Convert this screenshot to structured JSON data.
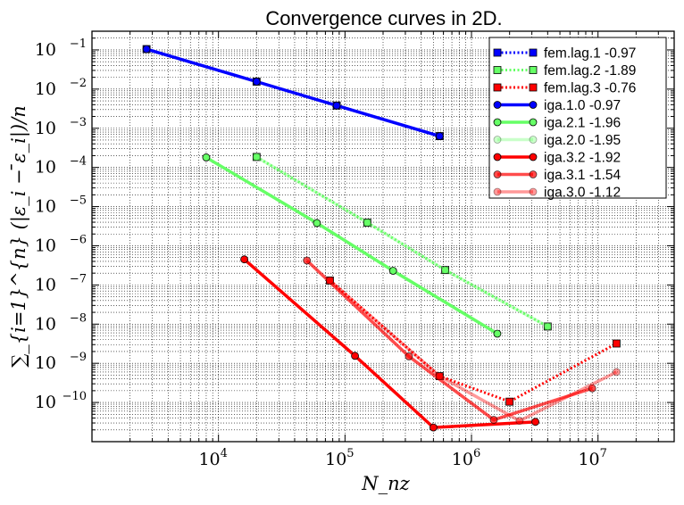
{
  "chart_data": {
    "type": "line",
    "title": "Convergence curves in 2D.",
    "xlabel": "N_nz",
    "ylabel": "∑_{i=1}^{n} (|ε_i − ̄ε_i|)/n",
    "xscale": "log",
    "yscale": "log",
    "xlim": [
      1000,
      40000000
    ],
    "ylim": [
      1e-11,
      0.3
    ],
    "grid": true,
    "legend_position": "top-right",
    "x_tick_labels": [
      {
        "value": 10000,
        "base": "10",
        "exp": "4"
      },
      {
        "value": 100000,
        "base": "10",
        "exp": "5"
      },
      {
        "value": 1000000,
        "base": "10",
        "exp": "6"
      },
      {
        "value": 10000000,
        "base": "10",
        "exp": "7"
      }
    ],
    "y_tick_labels": [
      {
        "value": 0.1,
        "base": "10",
        "exp": "−1"
      },
      {
        "value": 0.01,
        "base": "10",
        "exp": "−2"
      },
      {
        "value": 0.001,
        "base": "10",
        "exp": "−3"
      },
      {
        "value": 0.0001,
        "base": "10",
        "exp": "−4"
      },
      {
        "value": 1e-05,
        "base": "10",
        "exp": "−5"
      },
      {
        "value": 1e-06,
        "base": "10",
        "exp": "−6"
      },
      {
        "value": 1e-07,
        "base": "10",
        "exp": "−7"
      },
      {
        "value": 1e-08,
        "base": "10",
        "exp": "−8"
      },
      {
        "value": 1e-09,
        "base": "10",
        "exp": "−9"
      },
      {
        "value": 1e-10,
        "base": "10",
        "exp": "−10"
      }
    ],
    "series": [
      {
        "name": "fem.lag.1 -0.97",
        "color": "#0000ff",
        "opacity": 1.0,
        "dash": "dotted",
        "marker": "square",
        "x": [
          2700,
          20000,
          86000,
          560000
        ],
        "y": [
          0.105,
          0.0155,
          0.0038,
          0.00063
        ]
      },
      {
        "name": "fem.lag.2 -1.89",
        "color": "#66ff66",
        "opacity": 1.0,
        "dash": "dotted",
        "marker": "square",
        "x": [
          20000,
          150000,
          620000,
          4000000
        ],
        "y": [
          0.000185,
          3.9e-06,
          2.4e-07,
          8.7e-09
        ]
      },
      {
        "name": "fem.lag.3 -0.76",
        "color": "#ff0000",
        "opacity": 1.0,
        "dash": "dotted",
        "marker": "square",
        "x": [
          76000,
          560000,
          2000000,
          14000000
        ],
        "y": [
          1.3e-07,
          4.7e-10,
          1.05e-10,
          3.2e-09
        ]
      },
      {
        "name": "iga.1.0 -0.97",
        "color": "#0000ff",
        "opacity": 1.0,
        "dash": "solid",
        "marker": "circle",
        "x": [
          2700,
          20000,
          86000,
          560000
        ],
        "y": [
          0.105,
          0.0155,
          0.0038,
          0.00063
        ]
      },
      {
        "name": "iga.2.1 -1.96",
        "color": "#66ff66",
        "opacity": 1.0,
        "dash": "solid",
        "marker": "circle",
        "x": [
          8000,
          60000,
          240000,
          1600000
        ],
        "y": [
          0.00018,
          3.8e-06,
          2.3e-07,
          5.7e-09
        ]
      },
      {
        "name": "iga.2.0 -1.95",
        "color": "#66ff66",
        "opacity": 0.35,
        "dash": "solid",
        "marker": "circle",
        "x": [
          20000,
          150000,
          620000,
          4000000
        ],
        "y": [
          0.000185,
          3.9e-06,
          2.4e-07,
          8.7e-09
        ]
      },
      {
        "name": "iga.3.2 -1.92",
        "color": "#ff0000",
        "opacity": 1.0,
        "dash": "solid",
        "marker": "circle",
        "x": [
          16000,
          120000,
          500000,
          3200000
        ],
        "y": [
          4.5e-07,
          1.55e-09,
          2.3e-11,
          3.2e-11
        ]
      },
      {
        "name": "iga.3.1 -1.54",
        "color": "#ff0000",
        "opacity": 0.7,
        "dash": "solid",
        "marker": "circle",
        "x": [
          50000,
          320000,
          1500000,
          9000000
        ],
        "y": [
          4.2e-07,
          1.5e-09,
          3.6e-11,
          2.3e-10
        ]
      },
      {
        "name": "iga.3.0 -1.12",
        "color": "#ff0000",
        "opacity": 0.4,
        "dash": "solid",
        "marker": "circle",
        "x": [
          76000,
          560000,
          2400000,
          14000000
        ],
        "y": [
          1.3e-07,
          4.7e-10,
          3.4e-11,
          6e-10
        ]
      }
    ]
  }
}
